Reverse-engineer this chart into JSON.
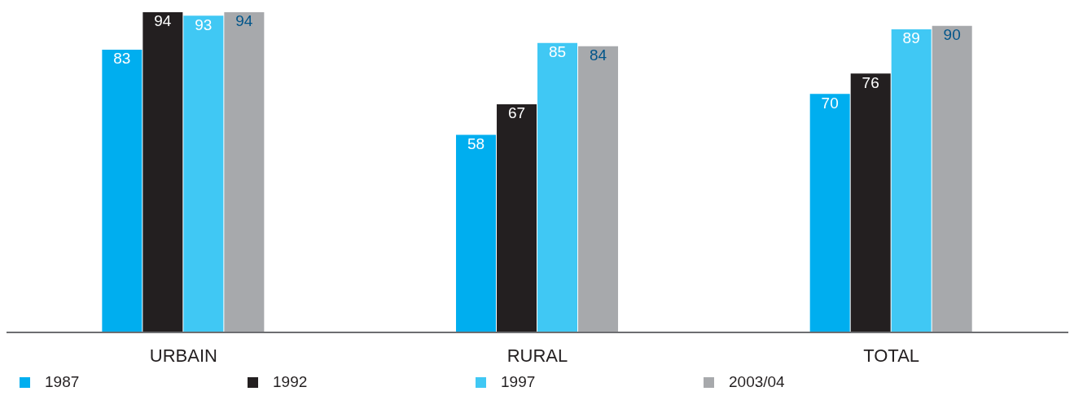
{
  "chart_data": {
    "type": "bar",
    "categories": [
      "URBAIN",
      "RURAL",
      "TOTAL"
    ],
    "series": [
      {
        "name": "1987",
        "color": "#00aeef",
        "values": [
          83,
          58,
          70
        ]
      },
      {
        "name": "1992",
        "color": "#231f20",
        "values": [
          94,
          67,
          76
        ]
      },
      {
        "name": "1997",
        "color": "#40c8f4",
        "values": [
          93,
          85,
          89
        ]
      },
      {
        "name": "2003/04",
        "color": "#a7a9ac",
        "values": [
          94,
          84,
          90
        ]
      }
    ],
    "data_labels": true,
    "legend": "bottom"
  }
}
